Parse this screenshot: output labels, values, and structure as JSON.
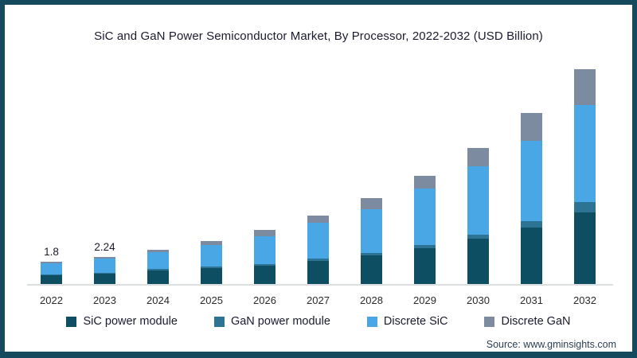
{
  "title": "SiC and GaN Power Semiconductor Market, By Processor, 2022-2032 (USD Billion)",
  "source": "Source: www.gminsights.com",
  "colors": {
    "frame_border": "#14495e",
    "sic_power_module": "#0d4e63",
    "gan_power_module": "#2d7394",
    "discrete_sic": "#48a7e4",
    "discrete_gan": "#7d8ba0",
    "axis_line": "#dcdfe0",
    "text": "#1b1b2f"
  },
  "chart_data": {
    "type": "bar",
    "stacked": true,
    "title": "SiC and GaN Power Semiconductor Market, By Processor, 2022-2032 (USD Billion)",
    "xlabel": "",
    "ylabel": "USD Billion",
    "ylim": [
      0,
      18
    ],
    "grid": false,
    "y_axis_visible": false,
    "legend_position": "bottom",
    "categories": [
      "2022",
      "2023",
      "2024",
      "2025",
      "2026",
      "2027",
      "2028",
      "2029",
      "2030",
      "2031",
      "2032"
    ],
    "series": [
      {
        "name": "SiC power module",
        "color": "#0d4e63",
        "values": [
          0.72,
          0.85,
          1.14,
          1.3,
          1.51,
          1.9,
          2.35,
          2.94,
          3.7,
          4.61,
          5.85
        ]
      },
      {
        "name": "GaN power module",
        "color": "#2d7394",
        "values": [
          0.09,
          0.09,
          0.1,
          0.12,
          0.14,
          0.17,
          0.22,
          0.26,
          0.33,
          0.55,
          0.87
        ]
      },
      {
        "name": "Discrete SiC",
        "color": "#48a7e4",
        "values": [
          0.89,
          1.14,
          1.37,
          1.79,
          2.25,
          2.94,
          3.58,
          4.61,
          5.58,
          6.56,
          7.95
        ]
      },
      {
        "name": "Discrete GaN",
        "color": "#7d8ba0",
        "values": [
          0.1,
          0.16,
          0.21,
          0.33,
          0.55,
          0.59,
          0.89,
          1.04,
          1.52,
          2.28,
          2.93
        ]
      }
    ],
    "totals": [
      1.8,
      2.24,
      2.82,
      3.54,
      4.45,
      5.6,
      7.04,
      8.85,
      11.13,
      14.0,
      17.6
    ],
    "bar_value_labels": {
      "2022": "1.8",
      "2023": "2.24"
    }
  },
  "legend": [
    {
      "label": "SiC power module",
      "color": "#0d4e63"
    },
    {
      "label": "GaN power module",
      "color": "#2d7394"
    },
    {
      "label": "Discrete SiC",
      "color": "#48a7e4"
    },
    {
      "label": "Discrete GaN",
      "color": "#7d8ba0"
    }
  ]
}
